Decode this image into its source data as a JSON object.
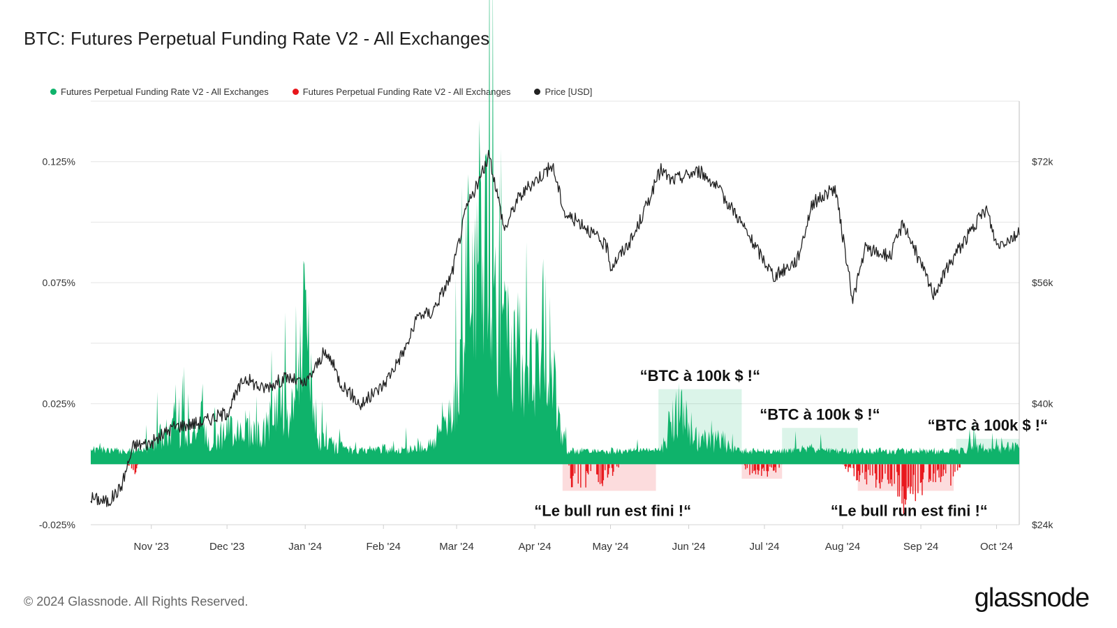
{
  "title": "BTC: Futures Perpetual Funding Rate V2 - All Exchanges",
  "legend": [
    {
      "label": "Futures Perpetual Funding Rate V2 - All Exchanges",
      "color": "#0fb36b"
    },
    {
      "label": "Futures Perpetual Funding Rate V2 - All Exchanges",
      "color": "#e8161b"
    },
    {
      "label": "Price [USD]",
      "color": "#222222"
    }
  ],
  "footer": "© 2024 Glassnode. All Rights Reserved.",
  "logo": "glassnode",
  "chart_data": {
    "type": "bar",
    "title": "BTC: Futures Perpetual Funding Rate V2 - All Exchanges",
    "x_ticks": [
      "Nov '23",
      "Dec '23",
      "Jan '24",
      "Feb '24",
      "Mar '24",
      "Apr '24",
      "May '24",
      "Jun '24",
      "Jul '24",
      "Aug '24",
      "Sep '24",
      "Oct '24"
    ],
    "x_range": [
      "2023-10-08",
      "2024-10-10"
    ],
    "y_left_ticks": [
      "0.125%",
      "0.075%",
      "0.025%",
      "-0.025%"
    ],
    "y_left_range": [
      -0.025,
      0.15
    ],
    "y_right_ticks": [
      "$72k",
      "$56k",
      "$40k",
      "$24k"
    ],
    "y_right_range": [
      24000,
      80000
    ],
    "grid": true,
    "colors": {
      "positive": "#0fb36b",
      "negative": "#e8161b",
      "price": "#222222"
    },
    "funding_rate_percent": {
      "x": [
        "2023-10-10",
        "2023-10-20",
        "2023-10-25",
        "2023-11-01",
        "2023-11-10",
        "2023-11-15",
        "2023-11-25",
        "2023-12-01",
        "2023-12-08",
        "2023-12-15",
        "2023-12-22",
        "2023-12-28",
        "2024-01-01",
        "2024-01-05",
        "2024-01-10",
        "2024-01-20",
        "2024-02-01",
        "2024-02-10",
        "2024-02-20",
        "2024-02-28",
        "2024-03-05",
        "2024-03-10",
        "2024-03-13",
        "2024-03-18",
        "2024-03-25",
        "2024-03-28",
        "2024-04-05",
        "2024-04-15",
        "2024-04-22",
        "2024-04-30",
        "2024-05-10",
        "2024-05-21",
        "2024-05-27",
        "2024-06-05",
        "2024-06-15",
        "2024-06-25",
        "2024-07-05",
        "2024-07-15",
        "2024-07-25",
        "2024-08-05",
        "2024-08-12",
        "2024-08-20",
        "2024-08-25",
        "2024-09-05",
        "2024-09-15",
        "2024-09-20",
        "2024-10-01",
        "2024-10-10"
      ],
      "values": [
        0.008,
        0.003,
        -0.004,
        0.012,
        0.017,
        0.02,
        0.012,
        0.018,
        0.02,
        0.014,
        0.033,
        0.022,
        0.08,
        0.012,
        0.01,
        0.006,
        0.007,
        0.006,
        0.01,
        0.03,
        0.06,
        0.105,
        0.125,
        0.065,
        0.06,
        0.035,
        0.073,
        -0.006,
        -0.008,
        -0.005,
        0.005,
        0.006,
        0.03,
        0.012,
        0.012,
        -0.004,
        -0.003,
        0.008,
        0.006,
        -0.004,
        -0.006,
        -0.007,
        -0.014,
        -0.005,
        -0.006,
        0.008,
        0.007,
        0.008
      ]
    },
    "price_usd": {
      "x": [
        "2023-10-08",
        "2023-10-15",
        "2023-10-20",
        "2023-10-25",
        "2023-11-01",
        "2023-11-10",
        "2023-11-20",
        "2023-12-01",
        "2023-12-08",
        "2023-12-15",
        "2023-12-25",
        "2024-01-01",
        "2024-01-08",
        "2024-01-11",
        "2024-01-15",
        "2024-01-23",
        "2024-02-01",
        "2024-02-10",
        "2024-02-15",
        "2024-02-20",
        "2024-02-28",
        "2024-03-05",
        "2024-03-10",
        "2024-03-14",
        "2024-03-20",
        "2024-03-25",
        "2024-04-01",
        "2024-04-08",
        "2024-04-13",
        "2024-04-20",
        "2024-04-30",
        "2024-05-01",
        "2024-05-10",
        "2024-05-15",
        "2024-05-21",
        "2024-05-25",
        "2024-06-05",
        "2024-06-10",
        "2024-06-20",
        "2024-06-25",
        "2024-07-05",
        "2024-07-14",
        "2024-07-20",
        "2024-07-29",
        "2024-08-05",
        "2024-08-10",
        "2024-08-20",
        "2024-08-25",
        "2024-09-06",
        "2024-09-15",
        "2024-09-27",
        "2024-10-01",
        "2024-10-10"
      ],
      "values": [
        27600,
        27000,
        29000,
        34500,
        34800,
        37000,
        37500,
        38800,
        43500,
        42000,
        43500,
        42500,
        46500,
        46000,
        42800,
        39800,
        42500,
        47500,
        51800,
        52000,
        57000,
        66000,
        69500,
        72900,
        63000,
        67000,
        69500,
        71500,
        65000,
        63800,
        60500,
        58000,
        62000,
        66000,
        71000,
        69500,
        70800,
        69500,
        65000,
        62000,
        56800,
        59000,
        66500,
        68500,
        53800,
        60500,
        59500,
        64000,
        54500,
        60000,
        65800,
        61000,
        62500
      ]
    }
  },
  "annotations": {
    "top": [
      {
        "text": "“BTC à 100k $ !“",
        "from": "2024-05-20",
        "to": "2024-06-22",
        "level": 0.031
      },
      {
        "text": "“BTC à 100k $ !“",
        "from": "2024-07-08",
        "to": "2024-08-07",
        "level": 0.015
      },
      {
        "text": "“BTC à 100k $ !“",
        "from": "2024-09-15",
        "to": "2024-10-10",
        "level": 0.0105
      }
    ],
    "bottom": [
      {
        "text": "“Le bull run est fini !“",
        "from": "2024-04-12",
        "to": "2024-05-19",
        "level": -0.011
      },
      {
        "text": "“Le bull run est fini !“",
        "from": "2024-06-22",
        "to": "2024-07-08",
        "level": -0.006
      },
      {
        "text": "“Le bull run est fini !“",
        "from": "2024-08-07",
        "to": "2024-09-14",
        "level": -0.011
      }
    ]
  }
}
